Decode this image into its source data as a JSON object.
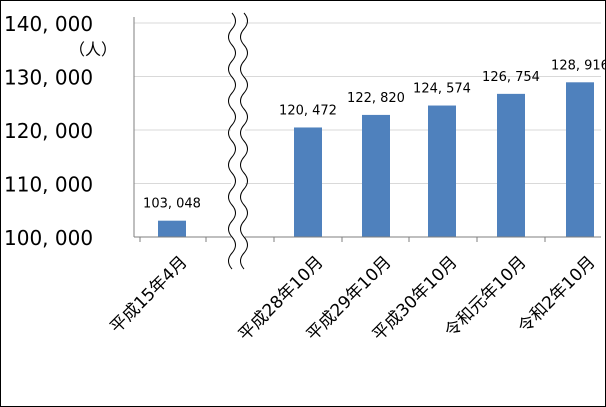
{
  "chart_data": {
    "type": "bar",
    "title": "",
    "xlabel": "",
    "ylabel": "",
    "unit_label": "（人）",
    "categories": [
      "平成15年4月",
      "平成28年10月",
      "平成29年10月",
      "平成30年10月",
      "令和元年10月",
      "令和2年10月"
    ],
    "values": [
      103048,
      120472,
      122820,
      124574,
      126754,
      128916
    ],
    "value_labels": [
      "103, 048",
      "120, 472",
      "122, 820",
      "124, 574",
      "126, 754",
      "128, 916"
    ],
    "yticks": [
      100000,
      110000,
      120000,
      130000,
      140000
    ],
    "ytick_labels": [
      "100, 000",
      "110, 000",
      "120, 000",
      "130, 000",
      "140, 000"
    ],
    "ylim": [
      100000,
      140000
    ],
    "axis_break": "between 平成15年4月 and 平成28年10月",
    "grid": true,
    "legend": "none",
    "bar_color": "#4F81BD",
    "grid_color": "#D9D9D9"
  }
}
